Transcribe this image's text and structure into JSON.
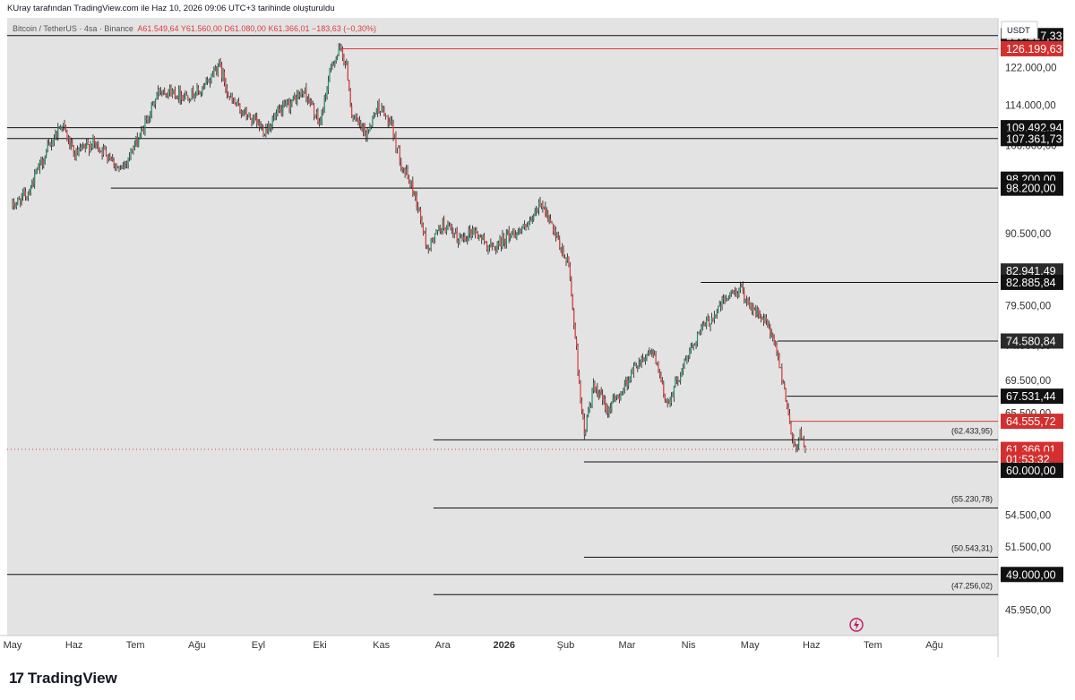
{
  "header": {
    "title": "KUray tarafından TradingView.com ile Haz 10, 2026 09:06 UTC+3 tarihinde oluşturuldu"
  },
  "symbol": {
    "name": "Bitcoin / TetherUS · 4sa · Binance",
    "open": "A61.549,64",
    "high": "Y61.560,00",
    "low": "D61.080,00",
    "close": "K61.366,01",
    "change": "−183,63 (−0,30%)"
  },
  "currency": "USDT",
  "brand": "TradingView",
  "colors": {
    "up": "#1f8f6b",
    "down": "#e03b3b",
    "background": "#e3e3e3",
    "accent": "#d32f2f"
  },
  "chart_data": {
    "type": "candlestick",
    "symbol": "BTCUSDT",
    "interval": "4sa",
    "x_tick_labels": [
      "May",
      "Haz",
      "Tem",
      "Ağu",
      "Eyl",
      "Eki",
      "Kas",
      "Ara",
      "2026",
      "Şub",
      "Mar",
      "Nis",
      "May",
      "Haz",
      "Tem",
      "Ağu"
    ],
    "y_tick_labels": [
      {
        "label": "122.000,00",
        "value": 122000
      },
      {
        "label": "114.000,00",
        "value": 114000
      },
      {
        "label": "106.000,00",
        "value": 106000
      },
      {
        "label": "90.500,00",
        "value": 90500
      },
      {
        "label": "79.500,00",
        "value": 79500
      },
      {
        "label": "74.000,00",
        "value": 74000
      },
      {
        "label": "69.500,00",
        "value": 69500
      },
      {
        "label": "65.500,00",
        "value": 65500
      },
      {
        "label": "54.500,00",
        "value": 54500
      },
      {
        "label": "51.500,00",
        "value": 51500
      },
      {
        "label": "45.950,00",
        "value": 45950
      }
    ],
    "ylim": [
      43900,
      133400
    ],
    "price_path": [
      {
        "month": 0.0,
        "price": 95000
      },
      {
        "month": 0.25,
        "price": 97500
      },
      {
        "month": 0.5,
        "price": 103500
      },
      {
        "month": 0.8,
        "price": 110500
      },
      {
        "month": 1.0,
        "price": 104000
      },
      {
        "month": 1.3,
        "price": 106500
      },
      {
        "month": 1.6,
        "price": 104000
      },
      {
        "month": 1.75,
        "price": 101000
      },
      {
        "month": 2.1,
        "price": 108500
      },
      {
        "month": 2.4,
        "price": 117500
      },
      {
        "month": 2.8,
        "price": 116000
      },
      {
        "month": 3.1,
        "price": 117000
      },
      {
        "month": 3.35,
        "price": 123000
      },
      {
        "month": 3.55,
        "price": 115000
      },
      {
        "month": 3.8,
        "price": 112000
      },
      {
        "month": 4.1,
        "price": 109000
      },
      {
        "month": 4.35,
        "price": 112500
      },
      {
        "month": 4.75,
        "price": 117000
      },
      {
        "month": 5.0,
        "price": 110000
      },
      {
        "month": 5.2,
        "price": 123000
      },
      {
        "month": 5.35,
        "price": 126199.63
      },
      {
        "month": 5.45,
        "price": 121000
      },
      {
        "month": 5.52,
        "price": 112000
      },
      {
        "month": 5.75,
        "price": 108000
      },
      {
        "month": 5.95,
        "price": 114000
      },
      {
        "month": 6.15,
        "price": 110000
      },
      {
        "month": 6.35,
        "price": 102000
      },
      {
        "month": 6.55,
        "price": 97000
      },
      {
        "month": 6.75,
        "price": 88000
      },
      {
        "month": 7.0,
        "price": 92000
      },
      {
        "month": 7.25,
        "price": 89500
      },
      {
        "month": 7.5,
        "price": 91000
      },
      {
        "month": 7.8,
        "price": 88000
      },
      {
        "month": 8.1,
        "price": 90500
      },
      {
        "month": 8.4,
        "price": 91500
      },
      {
        "month": 8.6,
        "price": 96000
      },
      {
        "month": 8.85,
        "price": 89500
      },
      {
        "month": 9.05,
        "price": 85500
      },
      {
        "month": 9.2,
        "price": 71000
      },
      {
        "month": 9.3,
        "price": 63000
      },
      {
        "month": 9.45,
        "price": 68500
      },
      {
        "month": 9.7,
        "price": 66000
      },
      {
        "month": 9.9,
        "price": 68000
      },
      {
        "month": 10.15,
        "price": 71500
      },
      {
        "month": 10.4,
        "price": 73500
      },
      {
        "month": 10.65,
        "price": 66500
      },
      {
        "month": 10.9,
        "price": 71000
      },
      {
        "month": 11.15,
        "price": 75500
      },
      {
        "month": 11.4,
        "price": 78000
      },
      {
        "month": 11.6,
        "price": 80500
      },
      {
        "month": 11.85,
        "price": 82000
      },
      {
        "month": 12.05,
        "price": 79000
      },
      {
        "month": 12.3,
        "price": 76500
      },
      {
        "month": 12.45,
        "price": 72500
      },
      {
        "month": 12.55,
        "price": 69000
      },
      {
        "month": 12.65,
        "price": 64000
      },
      {
        "month": 12.75,
        "price": 61200
      },
      {
        "month": 12.83,
        "price": 63500
      },
      {
        "month": 12.9,
        "price": 61366.01
      }
    ],
    "full_lines": [
      {
        "price": 129217.33,
        "label": "129.217,33"
      },
      {
        "price": 109492.94,
        "label": "109.492,94"
      },
      {
        "price": 107361.73,
        "label": "107.361,73"
      },
      {
        "price": 49000.0,
        "label": "49.000,00"
      }
    ],
    "segment_lines": [
      {
        "price": 126199.63,
        "label": "126.199,63",
        "from_month": 5.35,
        "color": "red"
      },
      {
        "price": 98200.0,
        "label": "98.200,00",
        "from_month": 1.6
      },
      {
        "price": 82885.84,
        "label": "82.885,84",
        "from_month": 11.2
      },
      {
        "price": 74580.84,
        "label": "74.580,84",
        "from_month": 12.45
      },
      {
        "price": 67531.44,
        "label": "67.531,44",
        "from_month": 12.6
      },
      {
        "price": 64555.72,
        "label": "64.555,72",
        "from_month": 12.65,
        "color": "red"
      },
      {
        "price": 62433.95,
        "label": "(62.433,95)",
        "from_month": 6.85
      },
      {
        "price": 60000.0,
        "label": "60.000,00",
        "from_month": 9.3
      },
      {
        "price": 55230.78,
        "label": "(55.230,78)",
        "from_month": 6.85
      },
      {
        "price": 50543.31,
        "label": "(50.543,31)",
        "from_month": 9.3
      },
      {
        "price": 47256.02,
        "label": "(47.256,02)",
        "from_month": 6.85
      }
    ],
    "price_labels": [
      {
        "label": "129.217,33",
        "price": 129217.33,
        "style": "black"
      },
      {
        "label": "126.199,63",
        "price": 126199.63,
        "style": "red"
      },
      {
        "label": "109.492,94",
        "price": 109492.94,
        "style": "black"
      },
      {
        "label": "107.361,73",
        "price": 107361.73,
        "style": "black"
      },
      {
        "label": "98.200,00",
        "price": 99800,
        "style": "black"
      },
      {
        "label": "98.200,00",
        "price": 98200.0,
        "style": "black"
      },
      {
        "label": "82.941,49",
        "price": 84600,
        "style": "darkgray"
      },
      {
        "label": "82.885,84",
        "price": 82885.84,
        "style": "black"
      },
      {
        "label": "74.580,84",
        "price": 74580.84,
        "style": "darkgray"
      },
      {
        "label": "67.531,44",
        "price": 67531.44,
        "style": "black"
      },
      {
        "label": "64.555,72",
        "price": 64555.72,
        "style": "red"
      },
      {
        "label": "61.366,01",
        "price": 61366.01,
        "style": "red"
      },
      {
        "label": "01:53:32",
        "price": 60300,
        "style": "red"
      },
      {
        "label": "60.000,00",
        "price": 59100,
        "style": "black"
      },
      {
        "label": "49.000,00",
        "price": 49000.0,
        "style": "black"
      }
    ]
  }
}
